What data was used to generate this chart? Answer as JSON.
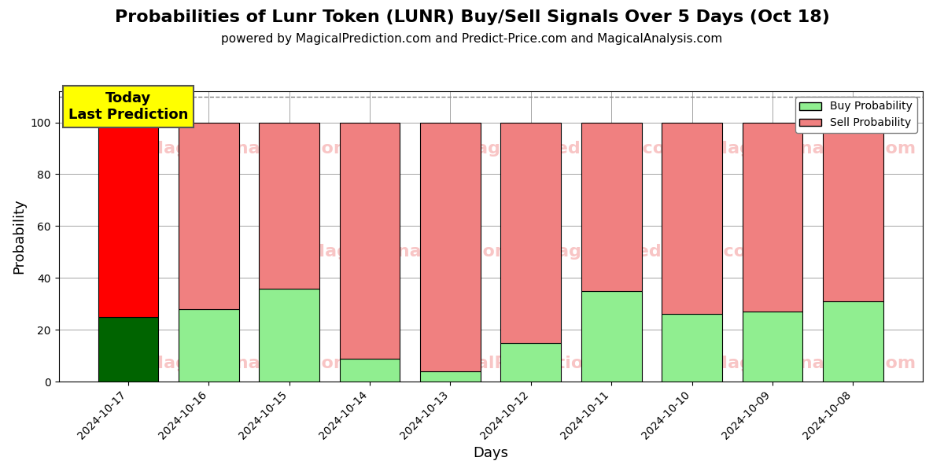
{
  "title": "Probabilities of Lunr Token (LUNR) Buy/Sell Signals Over 5 Days (Oct 18)",
  "subtitle": "powered by MagicalPrediction.com and Predict-Price.com and MagicalAnalysis.com",
  "xlabel": "Days",
  "ylabel": "Probability",
  "categories": [
    "2024-10-17",
    "2024-10-16",
    "2024-10-15",
    "2024-10-14",
    "2024-10-13",
    "2024-10-12",
    "2024-10-11",
    "2024-10-10",
    "2024-10-09",
    "2024-10-08"
  ],
  "buy_values": [
    25,
    28,
    36,
    9,
    4,
    15,
    35,
    26,
    27,
    31
  ],
  "sell_values": [
    75,
    72,
    64,
    91,
    96,
    85,
    65,
    74,
    73,
    69
  ],
  "buy_color_today": "#006400",
  "sell_color_today": "#FF0000",
  "buy_color_normal": "#90EE90",
  "sell_color_normal": "#F08080",
  "bar_edge_color": "#000000",
  "ylim": [
    0,
    112
  ],
  "dashed_line_y": 110,
  "watermark_positions": [
    [
      1.5,
      90,
      "MagicalAnalysis.com"
    ],
    [
      3.5,
      50,
      "MagicalAnalysis.com"
    ],
    [
      5.5,
      90,
      "MagicalPrediction.com"
    ],
    [
      7.5,
      50,
      "MagicalPrediction.com"
    ],
    [
      9.0,
      90,
      "MagicalAnalysis.com"
    ]
  ],
  "watermark_color": "#F08080",
  "watermark_alpha": 0.45,
  "annotation_text": "Today\nLast Prediction",
  "annotation_bg": "#FFFF00",
  "legend_buy_label": "Buy Probability",
  "legend_sell_label": "Sell Probability",
  "title_fontsize": 16,
  "subtitle_fontsize": 11,
  "axis_label_fontsize": 13,
  "tick_fontsize": 10,
  "bar_width": 0.75
}
